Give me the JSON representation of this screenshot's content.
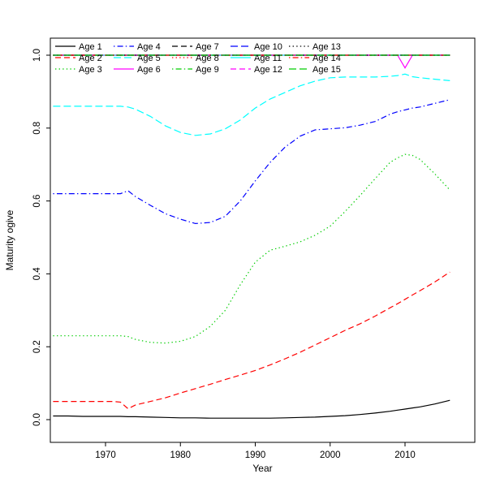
{
  "page": {
    "background": "#ffffff"
  },
  "chart_data": {
    "type": "line",
    "title": "",
    "xlabel": "Year",
    "ylabel": "Maturity ogive",
    "xlim": [
      1963,
      2016
    ],
    "ylim": [
      0.0,
      1.0
    ],
    "grid": false,
    "legend_position": "top-left-inside",
    "legend_columns": 5,
    "legend_rows": 3,
    "legend_fill_order": "column",
    "x_ticks": [
      {
        "value": 1970,
        "label": "1970"
      },
      {
        "value": 1980,
        "label": "1980"
      },
      {
        "value": 1990,
        "label": "1990"
      },
      {
        "value": 2000,
        "label": "2000"
      },
      {
        "value": 2010,
        "label": "2010"
      }
    ],
    "y_ticks": [
      {
        "value": 0.0,
        "label": "0.0"
      },
      {
        "value": 0.2,
        "label": "0.2"
      },
      {
        "value": 0.4,
        "label": "0.4"
      },
      {
        "value": 0.6,
        "label": "0.6"
      },
      {
        "value": 0.8,
        "label": "0.8"
      },
      {
        "value": 1.0,
        "label": "1.0"
      }
    ],
    "x": [
      1963,
      1965,
      1967,
      1969,
      1971,
      1972,
      1973,
      1974,
      1976,
      1978,
      1980,
      1982,
      1984,
      1986,
      1988,
      1990,
      1992,
      1994,
      1996,
      1998,
      2000,
      2002,
      2004,
      2006,
      2008,
      2009,
      2010,
      2011,
      2012,
      2014,
      2016
    ],
    "series": [
      {
        "name": "Age 1",
        "color": "#000000",
        "linetype": "solid",
        "y": [
          0.01,
          0.01,
          0.009,
          0.009,
          0.009,
          0.009,
          0.008,
          0.008,
          0.007,
          0.006,
          0.005,
          0.005,
          0.004,
          0.004,
          0.004,
          0.004,
          0.004,
          0.005,
          0.006,
          0.007,
          0.009,
          0.011,
          0.014,
          0.018,
          0.023,
          0.026,
          0.029,
          0.032,
          0.035,
          0.043,
          0.053
        ]
      },
      {
        "name": "Age 2",
        "color": "#ff0000",
        "linetype": "dashed",
        "y": [
          0.05,
          0.05,
          0.05,
          0.05,
          0.05,
          0.048,
          0.03,
          0.04,
          0.05,
          0.06,
          0.073,
          0.085,
          0.097,
          0.11,
          0.122,
          0.135,
          0.15,
          0.167,
          0.185,
          0.205,
          0.225,
          0.245,
          0.263,
          0.284,
          0.307,
          0.318,
          0.33,
          0.342,
          0.354,
          0.378,
          0.405
        ]
      },
      {
        "name": "Age 3",
        "color": "#00cd00",
        "linetype": "dotted",
        "y": [
          0.23,
          0.23,
          0.23,
          0.23,
          0.23,
          0.23,
          0.228,
          0.22,
          0.212,
          0.21,
          0.215,
          0.228,
          0.256,
          0.3,
          0.37,
          0.432,
          0.465,
          0.476,
          0.488,
          0.506,
          0.531,
          0.571,
          0.615,
          0.661,
          0.706,
          0.718,
          0.728,
          0.725,
          0.714,
          0.674,
          0.63
        ]
      },
      {
        "name": "Age 4",
        "color": "#0000ff",
        "linetype": "dotdash",
        "y": [
          0.62,
          0.62,
          0.62,
          0.62,
          0.62,
          0.62,
          0.628,
          0.612,
          0.588,
          0.565,
          0.55,
          0.538,
          0.541,
          0.558,
          0.6,
          0.655,
          0.706,
          0.748,
          0.778,
          0.795,
          0.798,
          0.801,
          0.808,
          0.818,
          0.838,
          0.845,
          0.85,
          0.855,
          0.858,
          0.868,
          0.878
        ]
      },
      {
        "name": "Age 5",
        "color": "#00ffff",
        "linetype": "longdash",
        "y": [
          0.86,
          0.86,
          0.86,
          0.86,
          0.86,
          0.86,
          0.858,
          0.852,
          0.832,
          0.806,
          0.788,
          0.78,
          0.784,
          0.798,
          0.822,
          0.855,
          0.88,
          0.898,
          0.916,
          0.929,
          0.938,
          0.94,
          0.94,
          0.94,
          0.942,
          0.944,
          0.948,
          0.941,
          0.938,
          0.934,
          0.93
        ]
      },
      {
        "name": "Age 6",
        "color": "#ff00ff",
        "linetype": "solid",
        "y": [
          1.0,
          1.0,
          1.0,
          1.0,
          1.0,
          1.0,
          1.0,
          1.0,
          1.0,
          1.0,
          1.0,
          1.0,
          1.0,
          1.0,
          1.0,
          1.0,
          1.0,
          1.0,
          1.0,
          1.0,
          1.0,
          1.0,
          1.0,
          1.0,
          1.0,
          1.0,
          0.965,
          1.0,
          1.0,
          1.0,
          1.0
        ]
      },
      {
        "name": "Age 7",
        "color": "#000000",
        "linetype": "dashed",
        "const_y": 1.0
      },
      {
        "name": "Age 8",
        "color": "#ff0000",
        "linetype": "dotted",
        "const_y": 1.0
      },
      {
        "name": "Age 9",
        "color": "#00cd00",
        "linetype": "dotdash",
        "const_y": 1.0
      },
      {
        "name": "Age 10",
        "color": "#0000ff",
        "linetype": "longdash",
        "const_y": 1.0
      },
      {
        "name": "Age 11",
        "color": "#00ffff",
        "linetype": "solid",
        "const_y": 1.0
      },
      {
        "name": "Age 12",
        "color": "#ff00ff",
        "linetype": "dashed",
        "const_y": 1.0
      },
      {
        "name": "Age 13",
        "color": "#000000",
        "linetype": "dotted",
        "const_y": 1.0
      },
      {
        "name": "Age 14",
        "color": "#ff0000",
        "linetype": "dotdash",
        "const_y": 1.0
      },
      {
        "name": "Age 15",
        "color": "#00cd00",
        "linetype": "longdash",
        "const_y": 1.0
      }
    ]
  }
}
